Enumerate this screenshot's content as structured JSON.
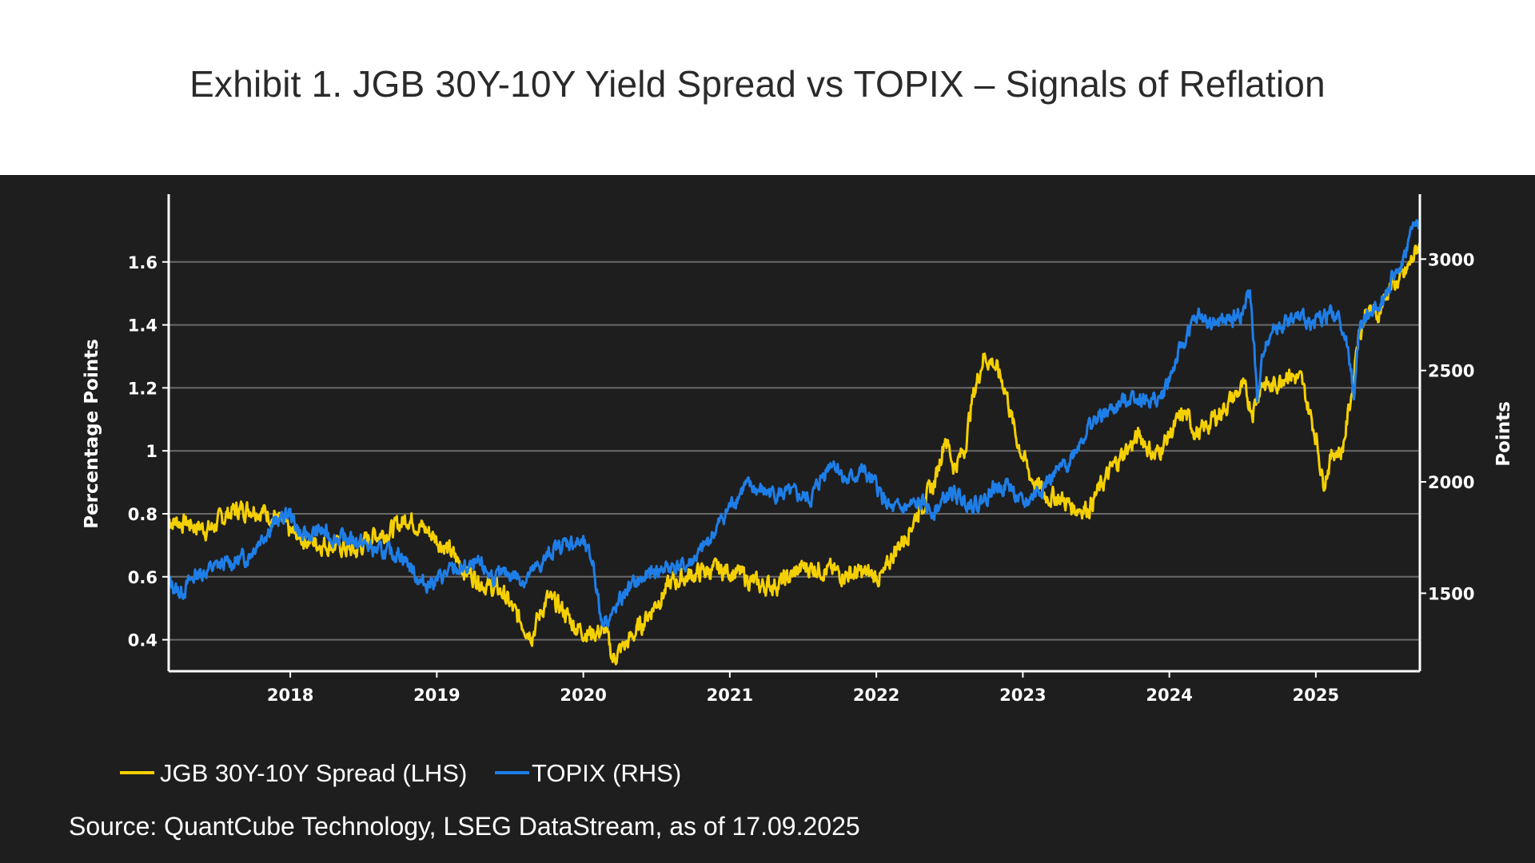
{
  "title": "Exhibit 1. JGB 30Y-10Y Yield Spread vs TOPIX – Signals of Reflation",
  "source": "Source: QuantCube Technology, LSEG DataStream, as of 17.09.2025",
  "colors": {
    "background": "#1e1e1e",
    "spread": "#f5d000",
    "topix": "#1e7ee8",
    "grid": "#6a6a6a",
    "axis": "#ffffff"
  },
  "chart_data": {
    "type": "line",
    "title": "Exhibit 1. JGB 30Y-10Y Yield Spread vs TOPIX – Signals of Reflation",
    "xlabel": "",
    "ylabel": "Percentage Points",
    "y2label": "Points",
    "xlim": [
      2017.17,
      2025.71
    ],
    "ylim": [
      0.3,
      1.8
    ],
    "y2lim": [
      1150,
      3270
    ],
    "x_ticks": [
      2018,
      2019,
      2020,
      2021,
      2022,
      2023,
      2024,
      2025
    ],
    "x_tick_labels": [
      "2018",
      "2019",
      "2020",
      "2021",
      "2022",
      "2023",
      "2024",
      "2025"
    ],
    "y_ticks": [
      0.4,
      0.6,
      0.8,
      1.0,
      1.2,
      1.4,
      1.6
    ],
    "y_tick_labels": [
      "0.4",
      "0.6",
      "0.8",
      "1",
      "1.2",
      "1.4",
      "1.6"
    ],
    "y2_ticks": [
      1500,
      2000,
      2500,
      3000
    ],
    "y2_tick_labels": [
      "1500",
      "2000",
      "2500",
      "3000"
    ],
    "grid": true,
    "legend_position": "bottom-left",
    "series": [
      {
        "name": "JGB 30Y-10Y Spread (LHS)",
        "axis": "left",
        "x": [
          2017.17,
          2017.3,
          2017.45,
          2017.6,
          2017.75,
          2017.9,
          2018.0,
          2018.15,
          2018.3,
          2018.45,
          2018.55,
          2018.7,
          2018.8,
          2018.95,
          2019.05,
          2019.2,
          2019.35,
          2019.45,
          2019.55,
          2019.65,
          2019.75,
          2019.85,
          2019.95,
          2020.05,
          2020.15,
          2020.2,
          2020.3,
          2020.4,
          2020.5,
          2020.6,
          2020.7,
          2020.85,
          2021.0,
          2021.1,
          2021.2,
          2021.35,
          2021.5,
          2021.6,
          2021.75,
          2021.9,
          2022.05,
          2022.12,
          2022.2,
          2022.3,
          2022.4,
          2022.47,
          2022.53,
          2022.6,
          2022.65,
          2022.73,
          2022.8,
          2022.88,
          2022.95,
          2023.05,
          2023.15,
          2023.25,
          2023.35,
          2023.45,
          2023.55,
          2023.62,
          2023.7,
          2023.8,
          2023.9,
          2024.0,
          2024.1,
          2024.2,
          2024.3,
          2024.4,
          2024.5,
          2024.57,
          2024.63,
          2024.7,
          2024.8,
          2024.9,
          2025.0,
          2025.05,
          2025.12,
          2025.18,
          2025.25,
          2025.28,
          2025.35,
          2025.42,
          2025.5,
          2025.6,
          2025.71
        ],
        "values": [
          0.78,
          0.77,
          0.75,
          0.81,
          0.82,
          0.79,
          0.74,
          0.71,
          0.7,
          0.68,
          0.73,
          0.75,
          0.79,
          0.74,
          0.7,
          0.62,
          0.57,
          0.55,
          0.47,
          0.42,
          0.53,
          0.5,
          0.44,
          0.42,
          0.43,
          0.34,
          0.39,
          0.45,
          0.52,
          0.58,
          0.6,
          0.62,
          0.62,
          0.6,
          0.57,
          0.58,
          0.63,
          0.63,
          0.61,
          0.61,
          0.6,
          0.68,
          0.73,
          0.82,
          0.9,
          1.05,
          0.95,
          1.0,
          1.15,
          1.3,
          1.28,
          1.2,
          1.05,
          0.92,
          0.86,
          0.85,
          0.82,
          0.82,
          0.9,
          0.95,
          1.0,
          1.05,
          0.98,
          1.05,
          1.12,
          1.05,
          1.1,
          1.15,
          1.2,
          1.13,
          1.22,
          1.2,
          1.25,
          1.22,
          1.05,
          0.9,
          1.0,
          1.0,
          1.2,
          1.35,
          1.45,
          1.43,
          1.52,
          1.55,
          1.66
        ]
      },
      {
        "name": "TOPIX (RHS)",
        "axis": "right",
        "x": [
          2017.17,
          2017.25,
          2017.35,
          2017.45,
          2017.55,
          2017.7,
          2017.8,
          2017.9,
          2018.0,
          2018.08,
          2018.2,
          2018.3,
          2018.45,
          2018.55,
          2018.65,
          2018.75,
          2018.82,
          2018.9,
          2019.0,
          2019.1,
          2019.2,
          2019.3,
          2019.4,
          2019.5,
          2019.6,
          2019.7,
          2019.8,
          2019.9,
          2020.0,
          2020.07,
          2020.12,
          2020.2,
          2020.3,
          2020.4,
          2020.5,
          2020.6,
          2020.7,
          2020.8,
          2020.9,
          2021.0,
          2021.1,
          2021.2,
          2021.3,
          2021.45,
          2021.55,
          2021.65,
          2021.7,
          2021.8,
          2021.9,
          2022.0,
          2022.1,
          2022.2,
          2022.3,
          2022.4,
          2022.5,
          2022.6,
          2022.7,
          2022.8,
          2022.9,
          2023.0,
          2023.1,
          2023.2,
          2023.3,
          2023.45,
          2023.55,
          2023.65,
          2023.75,
          2023.85,
          2023.95,
          2024.05,
          2024.15,
          2024.2,
          2024.3,
          2024.4,
          2024.5,
          2024.55,
          2024.58,
          2024.6,
          2024.65,
          2024.7,
          2024.8,
          2024.9,
          2025.0,
          2025.1,
          2025.18,
          2025.22,
          2025.26,
          2025.3,
          2025.4,
          2025.5,
          2025.6,
          2025.65,
          2025.71
        ],
        "values": [
          1550,
          1500,
          1580,
          1610,
          1630,
          1660,
          1750,
          1820,
          1860,
          1750,
          1780,
          1750,
          1740,
          1700,
          1680,
          1680,
          1620,
          1540,
          1560,
          1600,
          1610,
          1620,
          1570,
          1590,
          1560,
          1620,
          1700,
          1730,
          1720,
          1630,
          1380,
          1400,
          1520,
          1560,
          1600,
          1620,
          1620,
          1680,
          1780,
          1890,
          1980,
          1960,
          1950,
          1940,
          1920,
          2050,
          2100,
          2000,
          2050,
          1980,
          1870,
          1880,
          1900,
          1870,
          1950,
          1920,
          1900,
          1970,
          1990,
          1890,
          1960,
          2020,
          2080,
          2250,
          2300,
          2340,
          2390,
          2360,
          2380,
          2550,
          2700,
          2740,
          2710,
          2720,
          2760,
          2850,
          2600,
          2350,
          2620,
          2680,
          2720,
          2730,
          2720,
          2760,
          2710,
          2580,
          2400,
          2700,
          2780,
          2880,
          3000,
          3120,
          3180
        ]
      }
    ]
  },
  "legend": {
    "entries": [
      "JGB 30Y-10Y Spread (LHS)",
      "TOPIX (RHS)"
    ]
  }
}
